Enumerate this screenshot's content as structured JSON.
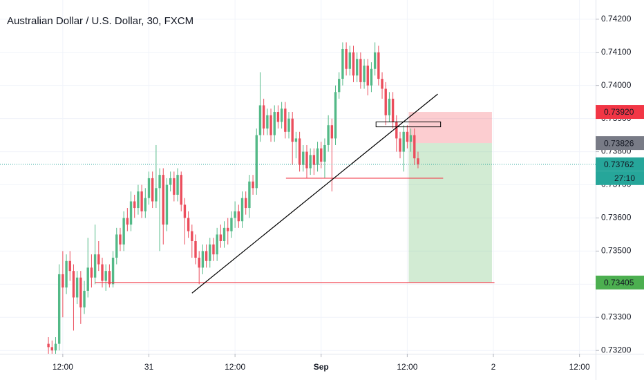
{
  "chart_data": {
    "type": "candlestick",
    "title": "Australian Dollar / U.S. Dollar, 30, FXCM",
    "up_color": "#53b987",
    "down_color": "#eb4d5c",
    "xlim": [
      -13.5,
      152.5
    ],
    "ylim": [
      0.7319,
      0.74258
    ],
    "grid": true,
    "xticks": [
      {
        "value": 4,
        "label": "12:00"
      },
      {
        "value": 28,
        "label": "31"
      },
      {
        "value": 52,
        "label": "12:00"
      },
      {
        "value": 76,
        "label": "Sep",
        "bold": true
      },
      {
        "value": 100,
        "label": "12:00"
      },
      {
        "value": 124,
        "label": "2"
      },
      {
        "value": 148,
        "label": "12:00"
      }
    ],
    "yticks": [
      {
        "value": 0.742,
        "label": "0.74200"
      },
      {
        "value": 0.741,
        "label": "0.74100"
      },
      {
        "value": 0.74,
        "label": "0.74000"
      },
      {
        "value": 0.739,
        "label": "0.73900"
      },
      {
        "value": 0.738,
        "label": "0.73800"
      },
      {
        "value": 0.737,
        "label": "0.73700"
      },
      {
        "value": 0.736,
        "label": "0.73600"
      },
      {
        "value": 0.735,
        "label": "0.73500"
      },
      {
        "value": 0.734,
        "label": "0.73400"
      },
      {
        "value": 0.733,
        "label": "0.73300"
      },
      {
        "value": 0.732,
        "label": "0.73200"
      }
    ],
    "open": [
      0.7322,
      0.7321,
      0.732,
      0.7322,
      0.7343,
      0.7339,
      0.7347,
      0.7344,
      0.7336,
      0.7342,
      0.7333,
      0.7338,
      0.7345,
      0.7342,
      0.7349,
      0.7346,
      0.7341,
      0.7344,
      0.734,
      0.7348,
      0.7355,
      0.7352,
      0.736,
      0.7358,
      0.7365,
      0.7363,
      0.7368,
      0.7362,
      0.7366,
      0.7372,
      0.7365,
      0.7369,
      0.7373,
      0.7358,
      0.737,
      0.7372,
      0.7367,
      0.7373,
      0.7364,
      0.736,
      0.7356,
      0.7353,
      0.7348,
      0.7345,
      0.735,
      0.7347,
      0.7352,
      0.7349,
      0.7355,
      0.7353,
      0.7357,
      0.7356,
      0.736,
      0.7362,
      0.7359,
      0.7366,
      0.7363,
      0.7371,
      0.7369,
      0.7385,
      0.7394,
      0.7387,
      0.7391,
      0.7385,
      0.7392,
      0.7389,
      0.7393,
      0.7386,
      0.739,
      0.7383,
      0.7384,
      0.7376,
      0.738,
      0.7375,
      0.7379,
      0.7376,
      0.7381,
      0.7377,
      0.7382,
      0.7388,
      0.7384,
      0.7398,
      0.7402,
      0.7411,
      0.7405,
      0.741,
      0.7403,
      0.7408,
      0.7401,
      0.7406,
      0.74,
      0.7405,
      0.741,
      0.7402,
      0.7399,
      0.7391,
      0.7396,
      0.7389,
      0.7384,
      0.738,
      0.7386,
      0.7383,
      0.7385,
      0.7378
    ],
    "high": [
      0.7324,
      0.7323,
      0.7324,
      0.7346,
      0.735,
      0.7349,
      0.735,
      0.7346,
      0.7344,
      0.7344,
      0.7341,
      0.7354,
      0.7349,
      0.7358,
      0.7353,
      0.7348,
      0.7346,
      0.7346,
      0.735,
      0.7357,
      0.7357,
      0.7362,
      0.7363,
      0.7368,
      0.7367,
      0.737,
      0.737,
      0.7369,
      0.7374,
      0.7374,
      0.7382,
      0.7375,
      0.7375,
      0.7372,
      0.7374,
      0.7374,
      0.7375,
      0.7374,
      0.7366,
      0.7362,
      0.7358,
      0.7355,
      0.735,
      0.7352,
      0.7352,
      0.7354,
      0.7354,
      0.7357,
      0.7358,
      0.7359,
      0.736,
      0.7362,
      0.7365,
      0.7364,
      0.7368,
      0.7368,
      0.7373,
      0.7373,
      0.7387,
      0.7404,
      0.7396,
      0.7393,
      0.7393,
      0.7394,
      0.7394,
      0.7395,
      0.7395,
      0.7392,
      0.7392,
      0.7386,
      0.7386,
      0.7382,
      0.7382,
      0.7381,
      0.7381,
      0.7383,
      0.7383,
      0.7384,
      0.7391,
      0.739,
      0.74,
      0.7404,
      0.7413,
      0.7413,
      0.7412,
      0.7412,
      0.741,
      0.741,
      0.7408,
      0.7408,
      0.7407,
      0.7413,
      0.7412,
      0.7404,
      0.7401,
      0.7398,
      0.7398,
      0.7391,
      0.7386,
      0.7388,
      0.7388,
      0.7387,
      0.7387,
      0.738
    ],
    "low": [
      0.7319,
      0.7319,
      0.7319,
      0.732,
      0.733,
      0.7337,
      0.7341,
      0.7326,
      0.7334,
      0.7328,
      0.7331,
      0.7336,
      0.7339,
      0.734,
      0.7344,
      0.7339,
      0.7338,
      0.7339,
      0.7339,
      0.7346,
      0.735,
      0.735,
      0.7356,
      0.7356,
      0.736,
      0.7361,
      0.736,
      0.736,
      0.7364,
      0.7363,
      0.7363,
      0.735,
      0.7352,
      0.7356,
      0.7368,
      0.7365,
      0.7365,
      0.7362,
      0.7352,
      0.7354,
      0.7348,
      0.7346,
      0.734,
      0.7343,
      0.7345,
      0.7345,
      0.7347,
      0.7347,
      0.7351,
      0.7351,
      0.7352,
      0.7354,
      0.7357,
      0.7357,
      0.7357,
      0.7361,
      0.736,
      0.7367,
      0.7367,
      0.7383,
      0.7385,
      0.7385,
      0.7383,
      0.7383,
      0.7387,
      0.7387,
      0.7384,
      0.7384,
      0.7376,
      0.7378,
      0.7374,
      0.7374,
      0.7372,
      0.7373,
      0.7373,
      0.7374,
      0.7375,
      0.7372,
      0.738,
      0.7368,
      0.7382,
      0.7396,
      0.74,
      0.7403,
      0.7403,
      0.7401,
      0.7401,
      0.7399,
      0.7399,
      0.7397,
      0.7398,
      0.7403,
      0.74,
      0.7396,
      0.7388,
      0.7389,
      0.7387,
      0.738,
      0.7378,
      0.7374,
      0.7381,
      0.738,
      0.7376,
      0.7375
    ],
    "close": [
      0.7321,
      0.732,
      0.7322,
      0.7343,
      0.7339,
      0.7347,
      0.7344,
      0.7336,
      0.7342,
      0.7333,
      0.7338,
      0.7345,
      0.7342,
      0.7349,
      0.7346,
      0.7341,
      0.7344,
      0.734,
      0.7348,
      0.7355,
      0.7352,
      0.736,
      0.7358,
      0.7365,
      0.7363,
      0.7368,
      0.7362,
      0.7366,
      0.7372,
      0.7365,
      0.7369,
      0.7373,
      0.7358,
      0.737,
      0.7372,
      0.7367,
      0.7373,
      0.7364,
      0.736,
      0.7356,
      0.7353,
      0.7348,
      0.7345,
      0.735,
      0.7347,
      0.7352,
      0.7349,
      0.7355,
      0.7353,
      0.7357,
      0.7356,
      0.736,
      0.7362,
      0.7359,
      0.7366,
      0.7363,
      0.7371,
      0.7369,
      0.7385,
      0.7394,
      0.7387,
      0.7391,
      0.7385,
      0.7392,
      0.7389,
      0.7393,
      0.7386,
      0.739,
      0.7383,
      0.7384,
      0.7376,
      0.738,
      0.7375,
      0.7379,
      0.7376,
      0.7381,
      0.7377,
      0.7382,
      0.7388,
      0.7384,
      0.7398,
      0.7402,
      0.7411,
      0.7405,
      0.741,
      0.7403,
      0.7408,
      0.7401,
      0.7406,
      0.74,
      0.7405,
      0.741,
      0.7402,
      0.7399,
      0.7391,
      0.7396,
      0.7389,
      0.7384,
      0.738,
      0.7386,
      0.7383,
      0.7385,
      0.7378,
      0.73762
    ],
    "position": {
      "entry": 0.73826,
      "stop": 0.7392,
      "target": 0.73405,
      "x": [
        100.4,
        123.6
      ]
    },
    "lines": [
      {
        "x": [
          13,
          124.3
        ],
        "y": [
          0.73405,
          0.73405
        ],
        "color": "#f23645"
      },
      {
        "x": [
          66.2,
          110
        ],
        "y": [
          0.7372,
          0.7372
        ],
        "color": "#f23645"
      },
      {
        "x": [
          40,
          108.5
        ],
        "y": [
          0.73373,
          0.73974
        ],
        "color": "#000000"
      }
    ],
    "boxes": [
      {
        "x": [
          91.3,
          109.3
        ],
        "y": [
          0.73875,
          0.7389
        ],
        "color": "#000000"
      }
    ],
    "price_labels": [
      {
        "value": 0.7392,
        "label": "0.73920",
        "color": "#f23645"
      },
      {
        "value": 0.73826,
        "label": "0.73826",
        "color": "#787b86"
      },
      {
        "value": 0.73762,
        "label": "0.73762",
        "color": "#26a69a",
        "countdown": "27:10"
      },
      {
        "value": 0.73405,
        "label": "0.73405",
        "color": "#4caf50"
      }
    ]
  }
}
